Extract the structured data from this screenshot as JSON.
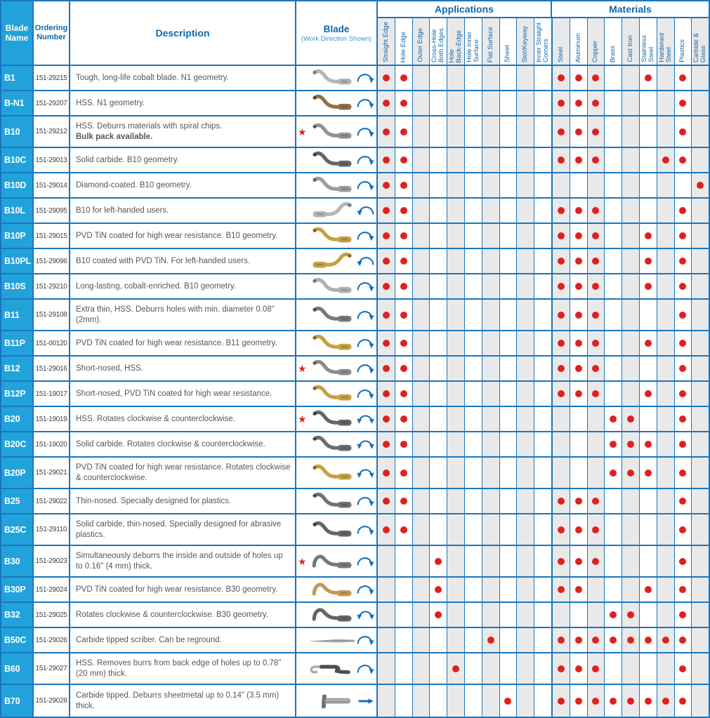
{
  "header": {
    "blade_name": "Blade Name",
    "ordering_number": "Ordering Number",
    "description": "Description",
    "blade": "Blade",
    "blade_sub": "(Work Direction Shown)",
    "applications": "Applications",
    "materials": "Materials"
  },
  "application_columns": [
    "Straight Edge",
    "Hole Edge",
    "Outer Edge",
    "Cross-Hole\nBoth Edges",
    "Hole\nBack-Edge",
    "Hole Inner\nSurface",
    "Flat Surface",
    "Sheet",
    "Slot/Keyway",
    "Inner Straight\nCorners"
  ],
  "material_columns": [
    "Steel",
    "Aluminum",
    "Copper",
    "Brass",
    "Cast Iron",
    "Stainless\nSteel",
    "Hardened\nSteel",
    "Plastics",
    "Carbide &\nGlass"
  ],
  "colors": {
    "border_blue": "#1b76bd",
    "name_column_blue": "#22a2db",
    "header_text_blue": "#0e67ad",
    "dot_red": "#e0201f",
    "shaded_column_gray": "#e9e9ea",
    "arrow_blue": "#1a6fb5"
  },
  "rows": [
    {
      "name": "B1",
      "order": "151-29215",
      "desc": "Tough, long-life cobalt blade. N1 geometry.",
      "desc_bold": "",
      "star": false,
      "shape": "s",
      "color": "#b3b5b7",
      "arrow": "cw",
      "tall": false,
      "apps": [
        0,
        1
      ],
      "mats": [
        0,
        1,
        2,
        5,
        7
      ]
    },
    {
      "name": "B-N1",
      "order": "151-29207",
      "desc": "HSS. N1 geometry.",
      "desc_bold": "",
      "star": false,
      "shape": "s",
      "color": "#8f6f4b",
      "arrow": "cw",
      "tall": false,
      "apps": [
        0,
        1
      ],
      "mats": [
        0,
        1,
        2,
        7
      ]
    },
    {
      "name": "B10",
      "order": "151-29212",
      "desc": "HSS. Deburrs materials with spiral chips.",
      "desc_bold": "Bulk pack available.",
      "star": true,
      "shape": "s",
      "color": "#909294",
      "arrow": "cw",
      "tall": true,
      "apps": [
        0,
        1
      ],
      "mats": [
        0,
        1,
        2,
        7
      ]
    },
    {
      "name": "B10C",
      "order": "151-29013",
      "desc": "Solid carbide. B10 geometry.",
      "desc_bold": "",
      "star": false,
      "shape": "s",
      "color": "#636567",
      "arrow": "cw",
      "tall": false,
      "apps": [
        0,
        1
      ],
      "mats": [
        0,
        1,
        2,
        6,
        7
      ]
    },
    {
      "name": "B10D",
      "order": "151-29014",
      "desc": "Diamond-coated. B10 geometry.",
      "desc_bold": "",
      "star": false,
      "shape": "s",
      "color": "#9a9c9e",
      "arrow": "cw",
      "tall": false,
      "apps": [
        0,
        1
      ],
      "mats": [
        8
      ]
    },
    {
      "name": "B10L",
      "order": "151-29095",
      "desc": "B10 for left-handed users.",
      "desc_bold": "",
      "star": false,
      "shape": "sf",
      "color": "#b3b5b7",
      "arrow": "ccw",
      "tall": false,
      "apps": [
        0,
        1
      ],
      "mats": [
        0,
        1,
        2,
        7
      ]
    },
    {
      "name": "B10P",
      "order": "151-29015",
      "desc": "PVD TiN coated for high wear resistance. B10 geometry.",
      "desc_bold": "",
      "star": false,
      "shape": "s",
      "color": "#c5a045",
      "arrow": "cw",
      "tall": false,
      "apps": [
        0,
        1
      ],
      "mats": [
        0,
        1,
        2,
        5,
        7
      ]
    },
    {
      "name": "B10PL",
      "order": "151-29096",
      "desc": "B10 coated with PVD TiN. For left-handed users.",
      "desc_bold": "",
      "star": false,
      "shape": "sf",
      "color": "#c5a045",
      "arrow": "ccw",
      "tall": false,
      "apps": [
        0,
        1
      ],
      "mats": [
        0,
        1,
        2,
        5,
        7
      ]
    },
    {
      "name": "B10S",
      "order": "151-29210",
      "desc": "Long-lasting, cobalt-enriched. B10 geometry.",
      "desc_bold": "",
      "star": false,
      "shape": "s",
      "color": "#aeb0b2",
      "arrow": "cw",
      "tall": false,
      "apps": [
        0,
        1
      ],
      "mats": [
        0,
        1,
        2,
        5,
        7
      ]
    },
    {
      "name": "B11",
      "order": "151-29108",
      "desc": "Extra thin, HSS. Deburrs holes with min. diameter 0.08\" (2mm).",
      "desc_bold": "",
      "star": false,
      "shape": "s",
      "color": "#77797b",
      "arrow": "cw",
      "tall": true,
      "apps": [
        0,
        1
      ],
      "mats": [
        0,
        1,
        2,
        7
      ]
    },
    {
      "name": "B11P",
      "order": "151-00120",
      "desc": "PVD TiN coated for high wear resistance. B11 geometry.",
      "desc_bold": "",
      "star": false,
      "shape": "s",
      "color": "#c5a045",
      "arrow": "cw",
      "tall": false,
      "apps": [
        0,
        1
      ],
      "mats": [
        0,
        1,
        2,
        5,
        7
      ]
    },
    {
      "name": "B12",
      "order": "151-29016",
      "desc": "Short-nosed, HSS.",
      "desc_bold": "",
      "star": true,
      "shape": "s",
      "color": "#8a8c8e",
      "arrow": "cw",
      "tall": false,
      "apps": [
        0,
        1
      ],
      "mats": [
        0,
        1,
        2,
        7
      ]
    },
    {
      "name": "B12P",
      "order": "151-19017",
      "desc": "Short-nosed, PVD TiN coated for high wear resistance.",
      "desc_bold": "",
      "star": false,
      "shape": "s",
      "color": "#c5a045",
      "arrow": "cw",
      "tall": false,
      "apps": [
        0,
        1
      ],
      "mats": [
        0,
        1,
        2,
        5,
        7
      ]
    },
    {
      "name": "B20",
      "order": "151-19019",
      "desc": "HSS. Rotates clockwise & counterclockwise.",
      "desc_bold": "",
      "star": true,
      "shape": "s",
      "color": "#636567",
      "arrow": "both",
      "tall": false,
      "apps": [
        0,
        1
      ],
      "mats": [
        3,
        4,
        7
      ]
    },
    {
      "name": "B20C",
      "order": "151-19020",
      "desc": "Solid carbide. Rotates clockwise & counterclockwise.",
      "desc_bold": "",
      "star": false,
      "shape": "s",
      "color": "#6b6d6f",
      "arrow": "both",
      "tall": false,
      "apps": [
        0,
        1
      ],
      "mats": [
        3,
        4,
        5,
        7
      ]
    },
    {
      "name": "B20P",
      "order": "151-29021",
      "desc": "PVD TiN coated for high wear resistance. Rotates clockwise & counterclockwise.",
      "desc_bold": "",
      "star": false,
      "shape": "s",
      "color": "#c5a045",
      "arrow": "both",
      "tall": true,
      "apps": [
        0,
        1
      ],
      "mats": [
        3,
        4,
        5,
        7
      ]
    },
    {
      "name": "B25",
      "order": "151-29022",
      "desc": "Thin-nosed. Specially designed for plastics.",
      "desc_bold": "",
      "star": false,
      "shape": "s",
      "color": "#6f7173",
      "arrow": "cw",
      "tall": false,
      "apps": [
        0,
        1
      ],
      "mats": [
        0,
        1,
        2,
        7
      ]
    },
    {
      "name": "B25C",
      "order": "151-29110",
      "desc": "Solid carbide, thin-nosed. Specially designed for abrasive plastics.",
      "desc_bold": "",
      "star": false,
      "shape": "s",
      "color": "#636567",
      "arrow": "cw",
      "tall": true,
      "apps": [
        0,
        1
      ],
      "mats": [
        0,
        1,
        2,
        7
      ]
    },
    {
      "name": "B30",
      "order": "151-29023",
      "desc": "Simultaneously deburrs the inside and outside of holes up to 0.16\" (4 mm) thick.",
      "desc_bold": "",
      "star": true,
      "shape": "hump",
      "color": "#77797b",
      "arrow": "cw",
      "tall": true,
      "apps": [
        3
      ],
      "mats": [
        0,
        1,
        2,
        7
      ]
    },
    {
      "name": "B30P",
      "order": "151-29024",
      "desc": "PVD TiN coated for high wear resistance. B30 geometry.",
      "desc_bold": "",
      "star": false,
      "shape": "hump",
      "color": "#c49a55",
      "arrow": "cw",
      "tall": false,
      "apps": [
        3
      ],
      "mats": [
        0,
        1,
        5,
        7
      ]
    },
    {
      "name": "B32",
      "order": "151-29025",
      "desc": "Rotates clockwise & counterclockwise. B30 geometry.",
      "desc_bold": "",
      "star": false,
      "shape": "hump",
      "color": "#636567",
      "arrow": "both",
      "tall": false,
      "apps": [
        3
      ],
      "mats": [
        3,
        4,
        7
      ]
    },
    {
      "name": "B50C",
      "order": "151-29026",
      "desc": "Carbide tipped scriber. Can be reground.",
      "desc_bold": "",
      "star": false,
      "shape": "straight",
      "color": "#a9abad",
      "arrow": "cw",
      "tall": false,
      "apps": [
        6
      ],
      "mats": [
        0,
        1,
        2,
        3,
        4,
        5,
        6,
        7
      ]
    },
    {
      "name": "B60",
      "order": "151-29027",
      "desc": "HSS. Removes burrs from back edge of holes up to 0.78\" (20 mm) thick.",
      "desc_bold": "",
      "star": false,
      "shape": "hook",
      "color": "#4c4e50",
      "arrow": "cw",
      "tall": true,
      "apps": [
        4
      ],
      "mats": [
        0,
        1,
        2,
        7
      ]
    },
    {
      "name": "B70",
      "order": "151-29028",
      "desc": "Carbide tipped. Deburrs sheetmetal up to 0.14\" (3.5 mm) thick.",
      "desc_bold": "",
      "star": false,
      "shape": "t",
      "color": "#9a9c9e",
      "arrow": "dash",
      "tall": true,
      "apps": [
        7
      ],
      "mats": [
        0,
        1,
        2,
        3,
        4,
        5,
        6,
        7
      ]
    }
  ]
}
